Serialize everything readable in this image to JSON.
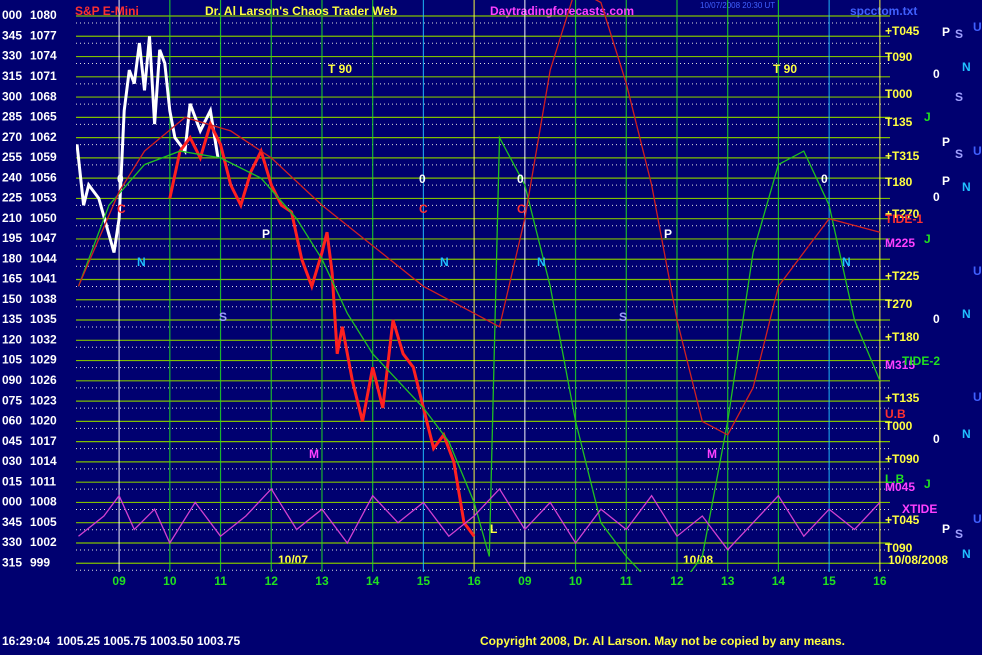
{
  "chart_data": {
    "type": "line",
    "symbol": "S&P E-Mini",
    "title": "Dr. Al Larson's Chaos Trader Web",
    "website": "Daytradingforecasts.com",
    "timestamp": "10/07/2008 20:30 UT",
    "file": "spcctom.txt",
    "status_line": "16:29:04  1005.25 1005.75 1003.50 1003.75",
    "copyright": "Copyright 2008, Dr. Al Larson. May not be copied by any means.",
    "date_labels": [
      "10/07",
      "10/08",
      "10/08/2008"
    ],
    "xlim": [
      -0.85,
      15.2
    ],
    "xticks": [
      {
        "value": 0,
        "label": "09"
      },
      {
        "value": 1,
        "label": "10"
      },
      {
        "value": 2,
        "label": "11"
      },
      {
        "value": 3,
        "label": "12"
      },
      {
        "value": 4,
        "label": "13"
      },
      {
        "value": 5,
        "label": "14"
      },
      {
        "value": 6,
        "label": "15"
      },
      {
        "value": 7,
        "label": "16"
      },
      {
        "value": 8,
        "label": "09"
      },
      {
        "value": 9,
        "label": "10"
      },
      {
        "value": 10,
        "label": "11"
      },
      {
        "value": 11,
        "label": "12"
      },
      {
        "value": 12,
        "label": "13"
      },
      {
        "value": 13,
        "label": "14"
      },
      {
        "value": 14,
        "label": "15"
      },
      {
        "value": 15,
        "label": "16"
      }
    ],
    "ylim": [
      998,
      1082
    ],
    "yticks": [
      1080,
      1077,
      1074,
      1071,
      1068,
      1065,
      1062,
      1059,
      1056,
      1053,
      1050,
      1047,
      1044,
      1041,
      1038,
      1035,
      1032,
      1029,
      1026,
      1023,
      1020,
      1017,
      1014,
      1011,
      1008,
      1005,
      1002,
      999
    ],
    "y_angle_labels": [
      "000",
      "345",
      "330",
      "315",
      "300",
      "285",
      "270",
      "255",
      "240",
      "225",
      "210",
      "195",
      "180",
      "165",
      "150",
      "135",
      "120",
      "105",
      "090",
      "075",
      "060",
      "045",
      "030",
      "015",
      "000",
      "345",
      "330",
      "315"
    ],
    "right_labels": [
      "+T045",
      "T090",
      "T000",
      "T135",
      "+T315",
      "T180",
      "+T270",
      "M225",
      "+T225",
      "T270",
      "+T180",
      "M315",
      "+T135",
      "T000",
      "+T090",
      "M045",
      "+T045",
      "T090"
    ],
    "tide_labels": [
      "TIDE-1",
      "TIDE-2",
      "U.B",
      "L.B",
      "XTIDE"
    ],
    "annotations": [
      "T 90",
      "T 90",
      "0",
      "0",
      "0",
      "0",
      "C",
      "C",
      "C",
      "N",
      "N",
      "N",
      "N",
      "S",
      "S",
      "P",
      "P",
      "M",
      "M",
      "L"
    ],
    "planet_letters": [
      "P",
      "S",
      "U",
      "0",
      "N",
      "S",
      "P",
      "U",
      "J",
      "S",
      "P",
      "N",
      "0",
      "J",
      "U",
      "N",
      "0",
      "U",
      "N",
      "0",
      "U",
      "J",
      "P",
      "S",
      "N"
    ],
    "grid": true,
    "grid_color": "#7fbf00",
    "series": [
      {
        "color": "#ffffff",
        "x": [
          -0.83,
          -0.7,
          -0.6,
          -0.4,
          -0.25,
          -0.1,
          0,
          0.1,
          0.2,
          0.3,
          0.4,
          0.5,
          0.6,
          0.7,
          0.8,
          0.9,
          1.0,
          1.1,
          1.3,
          1.4,
          1.6,
          1.8,
          1.95
        ],
        "values": [
          1061,
          1052,
          1055,
          1053,
          1049,
          1045,
          1050,
          1066,
          1072,
          1070,
          1076,
          1069,
          1077,
          1064,
          1075,
          1073,
          1066,
          1062,
          1060,
          1067,
          1063,
          1066,
          1059
        ]
      },
      {
        "color": "#ff2020",
        "x": [
          1.0,
          1.2,
          1.4,
          1.6,
          1.8,
          2.0,
          2.2,
          2.4,
          2.6,
          2.8,
          3.0,
          3.2,
          3.4,
          3.6,
          3.8,
          4.0,
          4.1,
          4.2,
          4.3,
          4.4,
          4.6,
          4.8,
          5.0,
          5.2,
          5.4,
          5.6,
          5.8,
          6.0,
          6.2,
          6.4,
          6.6,
          6.8,
          7.0
        ],
        "values": [
          1053,
          1060,
          1062,
          1059,
          1064,
          1061,
          1055,
          1052,
          1057,
          1060,
          1055,
          1052,
          1051,
          1044,
          1040,
          1045,
          1048,
          1042,
          1030,
          1034,
          1026,
          1020,
          1028,
          1022,
          1035,
          1030,
          1028,
          1022,
          1016,
          1018,
          1014,
          1005,
          1003
        ]
      },
      {
        "color": "#20c020",
        "x": [
          -0.8,
          -0.2,
          0.5,
          1.2,
          2,
          2.8,
          3.5,
          4,
          4.5,
          5,
          5.5,
          6,
          6.5,
          7,
          7.3
        ],
        "values": [
          1040,
          1052,
          1058,
          1060,
          1059,
          1056,
          1050,
          1044,
          1036,
          1030,
          1026,
          1022,
          1017,
          1008,
          1000
        ]
      },
      {
        "color": "#20c020",
        "x": [
          7.3,
          7.5,
          8,
          8.5,
          9,
          9.5,
          10,
          10.5,
          11,
          11.5,
          12,
          12.5,
          13,
          13.5,
          14,
          14.5,
          15
        ],
        "values": [
          1000,
          1062,
          1055,
          1040,
          1020,
          1005,
          1000,
          996,
          995,
          1000,
          1020,
          1045,
          1058,
          1060,
          1052,
          1035,
          1026
        ]
      },
      {
        "color": "#d02020",
        "x": [
          -0.8,
          0,
          0.5,
          1.3,
          2.2,
          3,
          4,
          5,
          6,
          7,
          7.5,
          8,
          8.5,
          9,
          9.5,
          10,
          10.5,
          11,
          11.5,
          12,
          12.5,
          13,
          14,
          15
        ],
        "values": [
          1040,
          1054,
          1060,
          1065,
          1063,
          1059,
          1052,
          1046,
          1040,
          1036,
          1034,
          1050,
          1072,
          1084,
          1082,
          1070,
          1055,
          1035,
          1020,
          1018,
          1025,
          1040,
          1050,
          1048
        ]
      },
      {
        "color": "#d040d0",
        "x": [
          -0.8,
          -0.3,
          0,
          0.3,
          0.7,
          1,
          1.5,
          2,
          2.5,
          3,
          3.5,
          4,
          4.5,
          5,
          5.5,
          6,
          6.5,
          7,
          7.5,
          8,
          8.5,
          9,
          9.5,
          10,
          10.5,
          11,
          11.5,
          12,
          12.5,
          13,
          13.5,
          14,
          14.5,
          15
        ],
        "values": [
          1003,
          1006,
          1009,
          1004,
          1007,
          1002,
          1008,
          1003,
          1006,
          1010,
          1004,
          1007,
          1002,
          1009,
          1005,
          1008,
          1003,
          1006,
          1010,
          1004,
          1008,
          1002,
          1007,
          1004,
          1009,
          1003,
          1006,
          1001,
          1005,
          1009,
          1003,
          1007,
          1004,
          1008
        ]
      }
    ]
  }
}
